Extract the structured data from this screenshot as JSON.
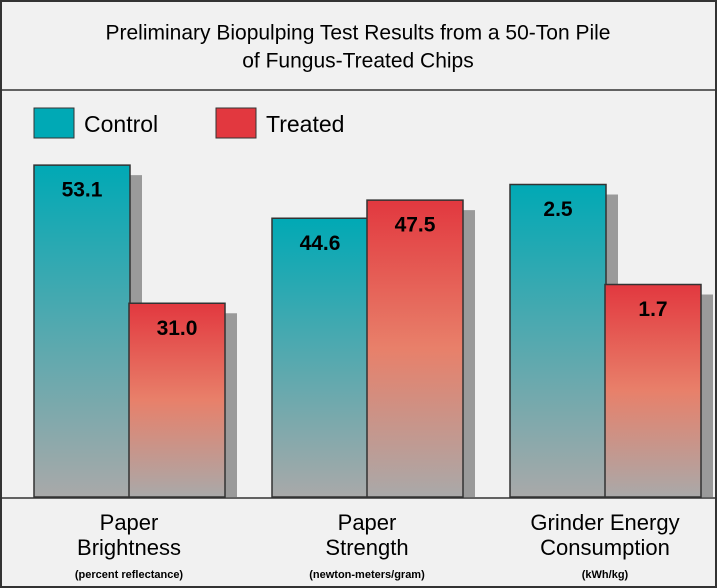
{
  "chart_data": {
    "type": "bar",
    "title": [
      "Preliminary Biopulping Test Results from a 50-Ton Pile",
      "of Fungus-Treated Chips"
    ],
    "categories": [
      [
        "Paper",
        "Brightness"
      ],
      [
        "Paper",
        "Strength"
      ],
      [
        "Grinder Energy",
        "Consumption"
      ]
    ],
    "category_units": [
      "(percent reflectance)",
      "(newton-meters/gram)",
      "(kWh/kg)"
    ],
    "ylims": [
      [
        0,
        60
      ],
      [
        0,
        60
      ],
      [
        0,
        3
      ]
    ],
    "series": [
      {
        "name": "Control",
        "color": "#00a9b5",
        "values": [
          53.1,
          44.6,
          2.5
        ]
      },
      {
        "name": "Treated",
        "color": "#e2383f",
        "values": [
          31,
          47.5,
          1.7
        ],
        "value_labels": [
          "31.0",
          "47.5",
          "1.7"
        ]
      }
    ]
  }
}
